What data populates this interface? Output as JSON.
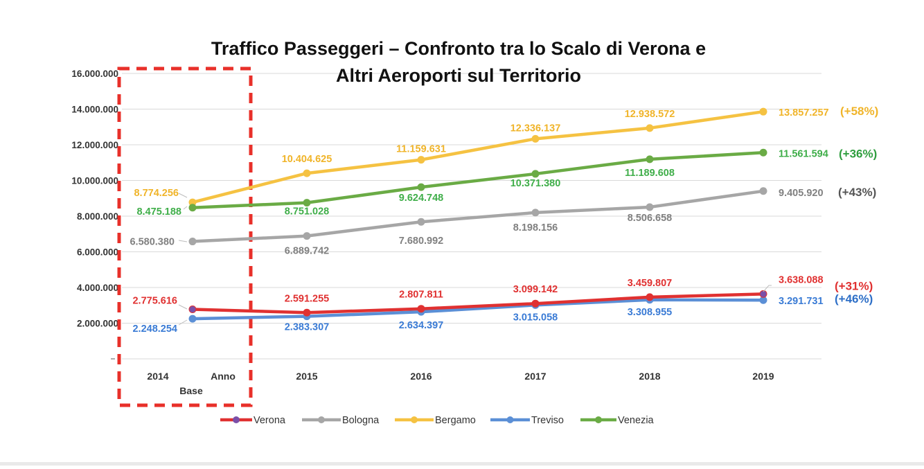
{
  "chart_data": {
    "type": "line",
    "title_lines": [
      "Traffico Passeggeri – Confronto tra lo Scalo di Verona e",
      "Altri Aeroporti sul Territorio"
    ],
    "categories": [
      "2014",
      "2015",
      "2016",
      "2017",
      "2018",
      "2019"
    ],
    "base_label": [
      "Anno",
      "Base"
    ],
    "ylim": [
      0,
      16000000
    ],
    "yticks": [
      {
        "value": 2000000,
        "label": "2.000.000"
      },
      {
        "value": 4000000,
        "label": "4.000.000"
      },
      {
        "value": 6000000,
        "label": "6.000.000"
      },
      {
        "value": 8000000,
        "label": "8.000.000"
      },
      {
        "value": 10000000,
        "label": "10.000.000"
      },
      {
        "value": 12000000,
        "label": "12.000.000"
      },
      {
        "value": 14000000,
        "label": "14.000.000"
      },
      {
        "value": 16000000,
        "label": "16.000.000"
      }
    ],
    "grid": true,
    "legend_position": "bottom",
    "series": [
      {
        "name": "Verona",
        "color": "#e03131",
        "values": [
          2775616,
          2591255,
          2807811,
          3099142,
          3459807,
          3638088
        ],
        "labels": [
          "2.775.616",
          "2.591.255",
          "2.807.811",
          "3.099.142",
          "3.459.807",
          "3.638.088"
        ],
        "growth": "(+31%)",
        "label_color": "#e03131",
        "growth_color": "#e03131"
      },
      {
        "name": "Bologna",
        "color": "#a6a6a6",
        "values": [
          6580380,
          6889742,
          7680992,
          8198156,
          8506658,
          9405920
        ],
        "labels": [
          "6.580.380",
          "6.889.742",
          "7.680.992",
          "8.198.156",
          "8.506.658",
          "9.405.920"
        ],
        "growth": "(+43%)",
        "label_color": "#808080",
        "growth_color": "#555555"
      },
      {
        "name": "Bergamo",
        "color": "#f5c242",
        "values": [
          8774256,
          10404625,
          11159631,
          12336137,
          12938572,
          13857257
        ],
        "labels": [
          "8.774.256",
          "10.404.625",
          "11.159.631",
          "12.336.137",
          "12.938.572",
          "13.857.257"
        ],
        "growth": "(+58%)",
        "label_color": "#f0b429",
        "growth_color": "#f0b429"
      },
      {
        "name": "Treviso",
        "color": "#5b8fd6",
        "values": [
          2248254,
          2383307,
          2634397,
          3015058,
          3308955,
          3291731
        ],
        "labels": [
          "2.248.254",
          "2.383.307",
          "2.634.397",
          "3.015.058",
          "3.308.955",
          "3.291.731"
        ],
        "growth": "(+46%)",
        "label_color": "#3a7bd5",
        "growth_color": "#2e6fc7"
      },
      {
        "name": "Venezia",
        "color": "#6aab45",
        "values": [
          8475188,
          8751028,
          9624748,
          10371380,
          11189608,
          11561594
        ],
        "labels": [
          "8.475.188",
          "8.751.028",
          "9.624.748",
          "10.371.380",
          "11.189.608",
          "11.561.594"
        ],
        "growth": "(+36%)",
        "label_color": "#3fae49",
        "growth_color": "#2f9e3f"
      }
    ],
    "highlight_box_color": "#e8302a"
  }
}
